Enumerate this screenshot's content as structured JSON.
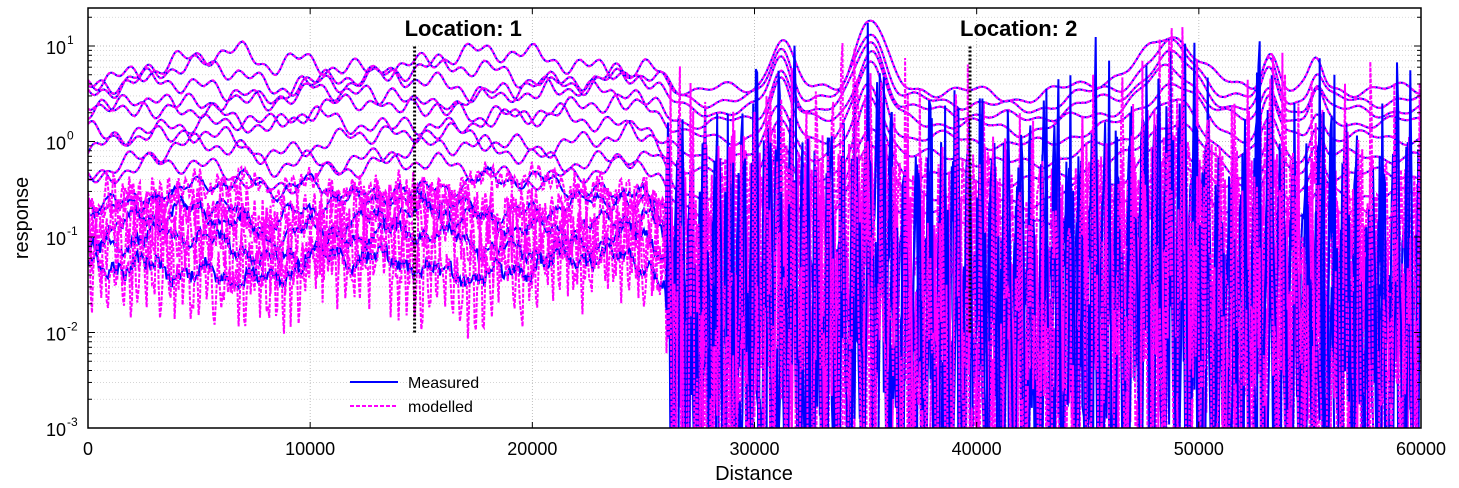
{
  "chart_data": {
    "type": "line",
    "title": "",
    "xlabel": "Distance",
    "ylabel": "response",
    "xlim": [
      0,
      60000
    ],
    "ylim": [
      0.001,
      25
    ],
    "yscale": "log",
    "grid": true,
    "legend_position": "bottom-left",
    "x_ticks": [
      "0",
      "10000",
      "20000",
      "30000",
      "40000",
      "50000",
      "60000"
    ],
    "x_tick_values": [
      0,
      10000,
      20000,
      30000,
      40000,
      50000,
      60000
    ],
    "y_ticks": [
      {
        "base": "10",
        "exp": "-3",
        "value": 0.001
      },
      {
        "base": "10",
        "exp": "-2",
        "value": 0.01
      },
      {
        "base": "10",
        "exp": "-1",
        "value": 0.1
      },
      {
        "base": "10",
        "exp": "0",
        "value": 1
      },
      {
        "base": "10",
        "exp": "1",
        "value": 10
      }
    ],
    "annotations": [
      {
        "label": "Location: 1",
        "x": 14700,
        "y_bottom": 0.01,
        "y_top": 10
      },
      {
        "label": "Location: 2",
        "x": 39700,
        "y_bottom": 0.01,
        "y_top": 10
      }
    ],
    "series": [
      {
        "name": "Measured",
        "color": "#0000ff",
        "style": "solid"
      },
      {
        "name": "modelled",
        "color": "#ff00ff",
        "style": "dashed"
      }
    ],
    "channels": {
      "count": 14,
      "level_left": [
        7,
        5,
        4,
        3,
        2.2,
        1.6,
        1.1,
        0.75,
        0.5,
        0.33,
        0.22,
        0.15,
        0.09,
        0.05
      ],
      "level_right": [
        3.5,
        2.7,
        2.1,
        1.6,
        1.1,
        0.7,
        0.45,
        0.28,
        0.17,
        0.1,
        0.06,
        0.04,
        0.025,
        0.015
      ],
      "transition_x": 26000
    }
  }
}
